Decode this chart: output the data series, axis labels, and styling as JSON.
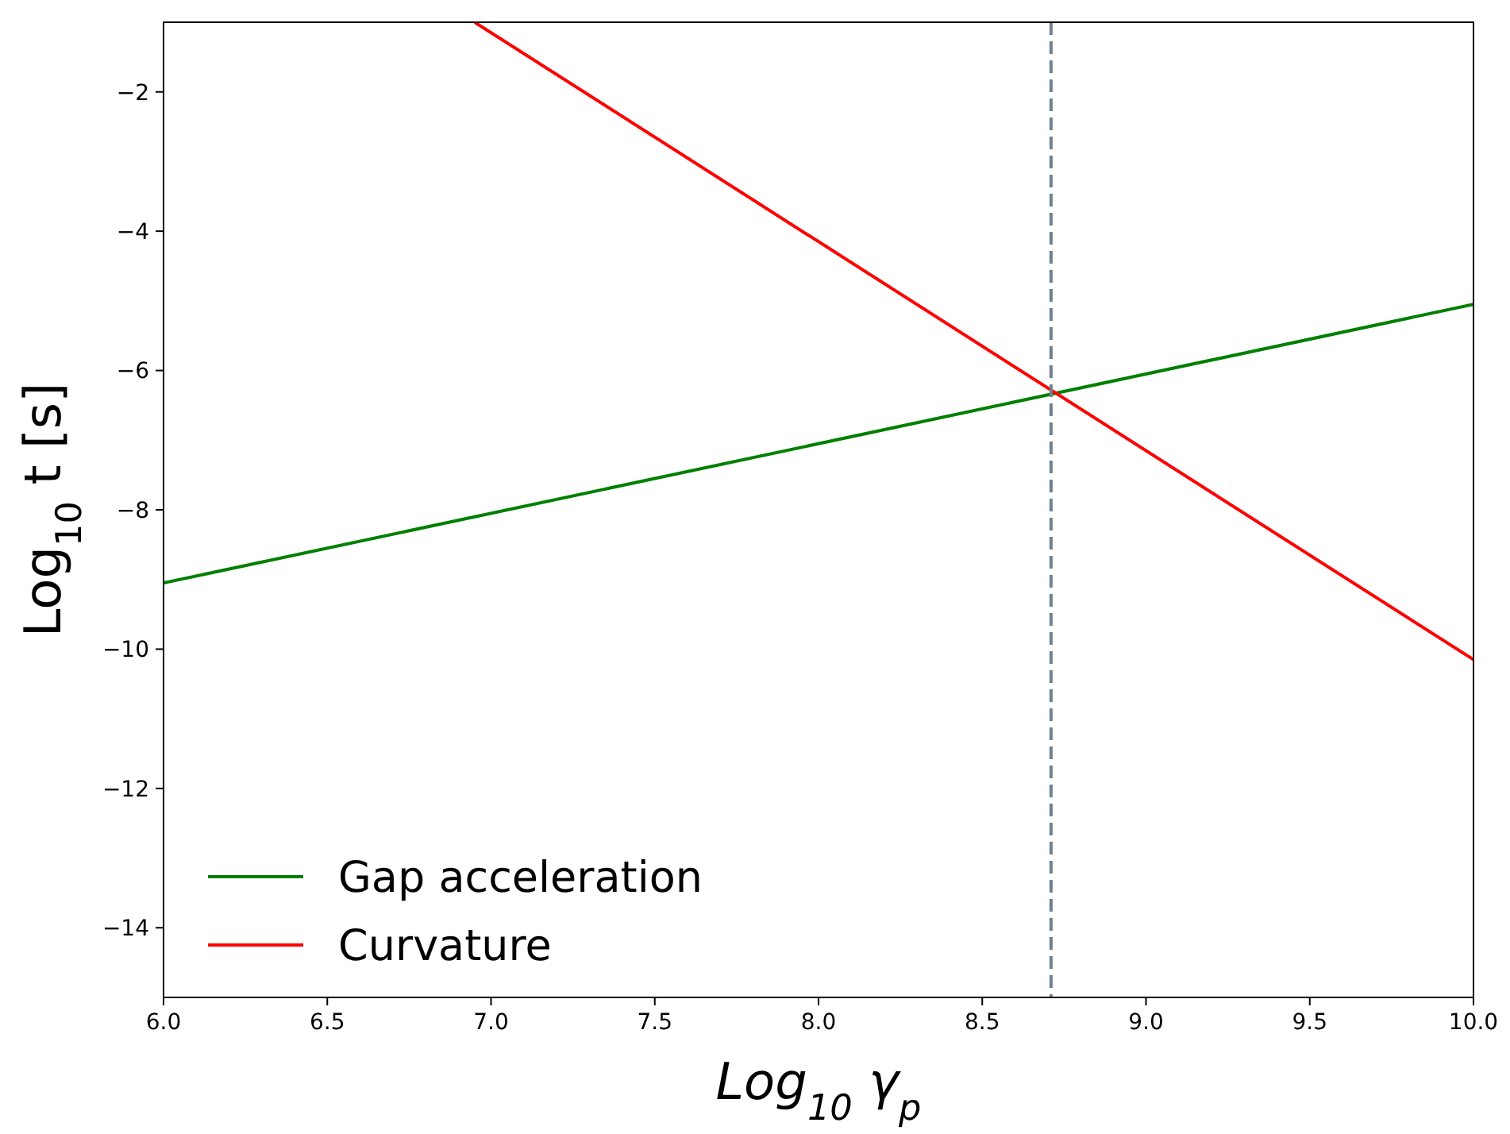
{
  "chart_data": {
    "type": "line",
    "xlabel": "Log$_{10}$ γ$_{p}$",
    "ylabel": "Log$_{10}$ t [s]",
    "xlim": [
      6,
      10
    ],
    "ylim": [
      -15,
      -1
    ],
    "xticks": [
      {
        "value": 6,
        "label": "6.0"
      },
      {
        "value": 6.5,
        "label": "6.5"
      },
      {
        "value": 7,
        "label": "7.0"
      },
      {
        "value": 7.5,
        "label": "7.5"
      },
      {
        "value": 8,
        "label": "8.0"
      },
      {
        "value": 8.5,
        "label": "8.5"
      },
      {
        "value": 9,
        "label": "9.0"
      },
      {
        "value": 9.5,
        "label": "9.5"
      },
      {
        "value": 10,
        "label": "10.0"
      }
    ],
    "yticks": [
      {
        "value": -14,
        "label": "−14"
      },
      {
        "value": -12,
        "label": "−12"
      },
      {
        "value": -10,
        "label": "−10"
      },
      {
        "value": -8,
        "label": "−8"
      },
      {
        "value": -6,
        "label": "−6"
      },
      {
        "value": -4,
        "label": "−4"
      },
      {
        "value": -2,
        "label": "−2"
      }
    ],
    "series": [
      {
        "name": "Gap acceleration",
        "color": "#008000",
        "x": [
          6,
          10
        ],
        "values": [
          -9.05,
          -5.05
        ]
      },
      {
        "name": "Curvature",
        "color": "#ff0000",
        "x": [
          6.95,
          10
        ],
        "values": [
          -1,
          -10.15
        ]
      }
    ],
    "ref_lines": [
      {
        "axis": "x",
        "value": 8.71,
        "color": "#708090",
        "line_style": "dashed"
      }
    ],
    "legend": "bottom left",
    "grid": false,
    "line_style": "solid"
  }
}
